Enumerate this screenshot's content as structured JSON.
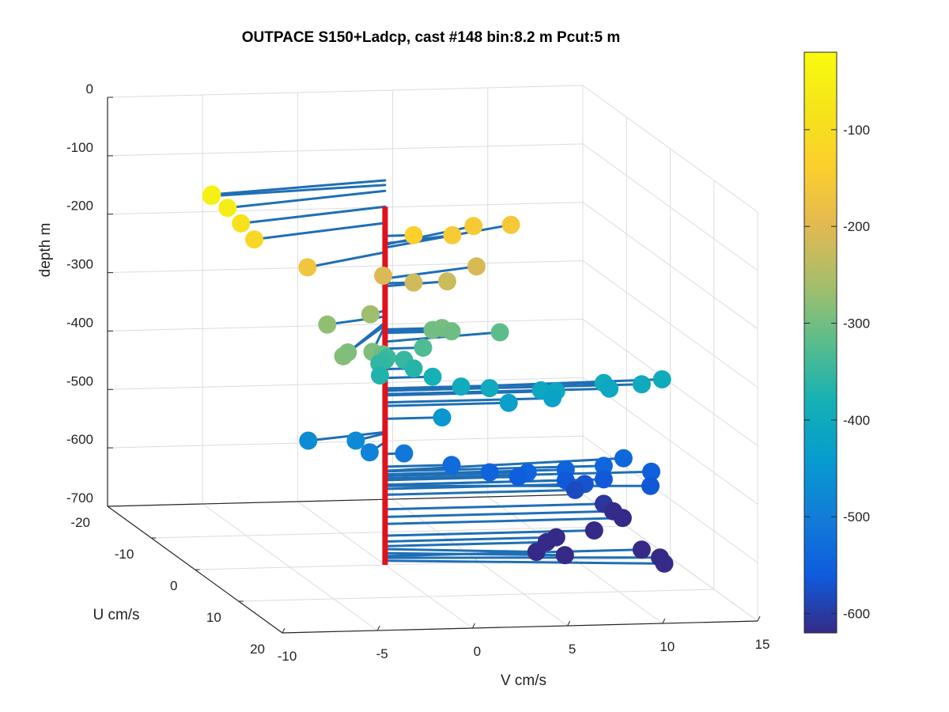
{
  "chart_data": {
    "type": "scatter",
    "subtype": "3d-scatter-with-stems",
    "title": "OUTPACE S150+Ladcp, cast #148 bin:8.2 m  Pcut:5 m",
    "xlabel": "V cm/s",
    "ylabel": "U cm/s",
    "zlabel": "depth m",
    "xlim": [
      -10,
      15
    ],
    "ylim": [
      -20,
      20
    ],
    "zlim": [
      -700,
      0
    ],
    "xticks": [
      -10,
      -5,
      0,
      5,
      10,
      15
    ],
    "yticks": [
      -20,
      -10,
      0,
      10,
      20
    ],
    "zticks": [
      0,
      -100,
      -200,
      -300,
      -400,
      -500,
      -600,
      -700
    ],
    "grid": true,
    "colormap": "parula",
    "colorbar": {
      "ticks": [
        -100,
        -200,
        -300,
        -400,
        -500,
        -600
      ],
      "range": [
        -620,
        -20
      ]
    },
    "line_color": "#1f6fb5",
    "stem_color": "#e0121b",
    "stem_depth_range": [
      -87,
      -700
    ],
    "points": [
      {
        "v": -9.8,
        "u": 3,
        "depth": -42
      },
      {
        "v": -9.6,
        "u": 2,
        "depth": -50
      },
      {
        "v": -9.2,
        "u": 4,
        "depth": -60
      },
      {
        "v": -8.5,
        "u": 4,
        "depth": -87
      },
      {
        "v": -7.8,
        "u": 4,
        "depth": -115
      },
      {
        "v": -5.0,
        "u": 4,
        "depth": -165
      },
      {
        "v": 1.5,
        "u": 0,
        "depth": -137
      },
      {
        "v": 4.0,
        "u": -2,
        "depth": -150
      },
      {
        "v": 5.8,
        "u": -5,
        "depth": -152
      },
      {
        "v": 8.0,
        "u": -6,
        "depth": -157
      },
      {
        "v": -0.1,
        "u": 0,
        "depth": -205
      },
      {
        "v": 1.5,
        "u": 0,
        "depth": -218
      },
      {
        "v": 3.5,
        "u": -1,
        "depth": -223
      },
      {
        "v": 5.5,
        "u": -3,
        "depth": -210
      },
      {
        "v": -3.5,
        "u": 2,
        "depth": -275
      },
      {
        "v": -4.5,
        "u": 10,
        "depth": -285
      },
      {
        "v": -3.8,
        "u": 8,
        "depth": -290
      },
      {
        "v": -2.5,
        "u": 8,
        "depth": -290
      },
      {
        "v": -1.0,
        "u": 1,
        "depth": -265
      },
      {
        "v": -1.5,
        "u": 6,
        "depth": -306
      },
      {
        "v": 2.5,
        "u": 0,
        "depth": -300
      },
      {
        "v": 3.0,
        "u": 0,
        "depth": -297
      },
      {
        "v": 3.5,
        "u": 0,
        "depth": -303
      },
      {
        "v": 2.0,
        "u": 0,
        "depth": -330
      },
      {
        "v": 6.5,
        "u": -2,
        "depth": -318
      },
      {
        "v": 0.1,
        "u": 0,
        "depth": -345
      },
      {
        "v": 0.0,
        "u": 0,
        "depth": -350
      },
      {
        "v": -0.3,
        "u": 0,
        "depth": -355
      },
      {
        "v": 1.0,
        "u": 0,
        "depth": -350
      },
      {
        "v": -0.5,
        "u": 1,
        "depth": -370
      },
      {
        "v": 1.5,
        "u": 0,
        "depth": -365
      },
      {
        "v": 2.5,
        "u": 0,
        "depth": -380
      },
      {
        "v": 4.0,
        "u": 0,
        "depth": -398
      },
      {
        "v": 5.5,
        "u": 0,
        "depth": -402
      },
      {
        "v": 8.2,
        "u": 0,
        "depth": -408
      },
      {
        "v": 9.0,
        "u": 0,
        "depth": -410
      },
      {
        "v": 11.5,
        "u": 0,
        "depth": -398
      },
      {
        "v": 13.5,
        "u": 0,
        "depth": -402
      },
      {
        "v": 14.8,
        "u": -1,
        "depth": -400
      },
      {
        "v": 11.8,
        "u": 0,
        "depth": -408
      },
      {
        "v": 8.8,
        "u": 0,
        "depth": -422
      },
      {
        "v": 6.5,
        "u": 0,
        "depth": -428
      },
      {
        "v": 3.0,
        "u": 0,
        "depth": -450
      },
      {
        "v": -4.5,
        "u": 2,
        "depth": -473
      },
      {
        "v": -2.0,
        "u": 2,
        "depth": -475
      },
      {
        "v": -1.5,
        "u": 3,
        "depth": -490
      },
      {
        "v": 1.0,
        "u": 0,
        "depth": -510
      },
      {
        "v": 3.5,
        "u": 0,
        "depth": -532
      },
      {
        "v": 5.5,
        "u": 0,
        "depth": -546
      },
      {
        "v": 7.5,
        "u": 0,
        "depth": -548
      },
      {
        "v": 9.5,
        "u": 0,
        "depth": -545
      },
      {
        "v": 11.5,
        "u": 0,
        "depth": -540
      },
      {
        "v": 13.0,
        "u": -2,
        "depth": -539
      },
      {
        "v": 14.0,
        "u": 0,
        "depth": -552
      },
      {
        "v": 13.5,
        "u": 2,
        "depth": -565
      },
      {
        "v": 7.0,
        "u": 0,
        "depth": -555
      },
      {
        "v": 9.5,
        "u": 0,
        "depth": -563
      },
      {
        "v": 10.5,
        "u": 0,
        "depth": -570
      },
      {
        "v": 11.5,
        "u": 0,
        "depth": -563
      },
      {
        "v": 10.0,
        "u": 0,
        "depth": -580
      },
      {
        "v": 11.5,
        "u": 0,
        "depth": -605
      },
      {
        "v": 12.0,
        "u": 0,
        "depth": -618
      },
      {
        "v": 12.5,
        "u": 0,
        "depth": -630
      },
      {
        "v": 11.0,
        "u": 0,
        "depth": -650
      },
      {
        "v": 9.0,
        "u": 0,
        "depth": -660
      },
      {
        "v": 8.5,
        "u": 0,
        "depth": -668
      },
      {
        "v": 7.5,
        "u": 2,
        "depth": -673
      },
      {
        "v": 9.0,
        "u": 2,
        "depth": -680
      },
      {
        "v": 13.5,
        "u": 0,
        "depth": -685
      },
      {
        "v": 14.0,
        "u": 2,
        "depth": -688
      },
      {
        "v": 14.0,
        "u": 3,
        "depth": -693
      }
    ]
  }
}
